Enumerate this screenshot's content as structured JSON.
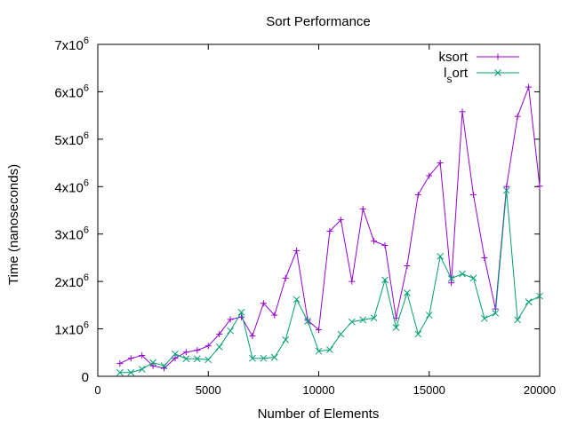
{
  "chart_data": {
    "type": "line",
    "title": "Sort Performance",
    "xlabel": "Number of Elements",
    "ylabel": "Time (nanoseconds)",
    "xlim": [
      0,
      20000
    ],
    "ylim": [
      0,
      7000000
    ],
    "x_ticks": [
      {
        "value": 0,
        "label": "0"
      },
      {
        "value": 5000,
        "label": "5000"
      },
      {
        "value": 10000,
        "label": "10000"
      },
      {
        "value": 15000,
        "label": "15000"
      },
      {
        "value": 20000,
        "label": "20000"
      }
    ],
    "y_ticks": [
      {
        "value": 0,
        "base": "0",
        "exp": ""
      },
      {
        "value": 1000000,
        "base": "1x10",
        "exp": "6"
      },
      {
        "value": 2000000,
        "base": "2x10",
        "exp": "6"
      },
      {
        "value": 3000000,
        "base": "3x10",
        "exp": "6"
      },
      {
        "value": 4000000,
        "base": "4x10",
        "exp": "6"
      },
      {
        "value": 5000000,
        "base": "5x10",
        "exp": "6"
      },
      {
        "value": 6000000,
        "base": "6x10",
        "exp": "6"
      },
      {
        "value": 7000000,
        "base": "7x10",
        "exp": "6"
      }
    ],
    "grid": false,
    "legend_position": "top-right",
    "series": [
      {
        "name": "ksort",
        "legend_parts": [
          "ksort",
          "",
          ""
        ],
        "color": "#9400d3",
        "marker": "plus",
        "points": [
          [
            1000,
            270000
          ],
          [
            1500,
            380000
          ],
          [
            2000,
            440000
          ],
          [
            2500,
            220000
          ],
          [
            3000,
            170000
          ],
          [
            3500,
            380000
          ],
          [
            4000,
            510000
          ],
          [
            4500,
            550000
          ],
          [
            5000,
            640000
          ],
          [
            5500,
            890000
          ],
          [
            6000,
            1200000
          ],
          [
            6500,
            1250000
          ],
          [
            7000,
            850000
          ],
          [
            7500,
            1540000
          ],
          [
            8000,
            1290000
          ],
          [
            8500,
            2070000
          ],
          [
            9000,
            2650000
          ],
          [
            9500,
            1180000
          ],
          [
            10000,
            980000
          ],
          [
            10500,
            3060000
          ],
          [
            11000,
            3300000
          ],
          [
            11500,
            2000000
          ],
          [
            12000,
            3530000
          ],
          [
            12500,
            2850000
          ],
          [
            13000,
            2760000
          ],
          [
            13500,
            1230000
          ],
          [
            14000,
            2330000
          ],
          [
            14500,
            3830000
          ],
          [
            15000,
            4230000
          ],
          [
            15500,
            4500000
          ],
          [
            16000,
            1970000
          ],
          [
            16500,
            5580000
          ],
          [
            17000,
            3830000
          ],
          [
            17500,
            2500000
          ],
          [
            18000,
            1420000
          ],
          [
            18500,
            4000000
          ],
          [
            19000,
            5480000
          ],
          [
            19500,
            6100000
          ],
          [
            20000,
            4010000
          ]
        ]
      },
      {
        "name": "lsort",
        "legend_parts": [
          "l",
          "s",
          "ort"
        ],
        "color": "#009e73",
        "marker": "cross",
        "points": [
          [
            1000,
            80000
          ],
          [
            1500,
            80000
          ],
          [
            2000,
            150000
          ],
          [
            2500,
            290000
          ],
          [
            3000,
            220000
          ],
          [
            3500,
            470000
          ],
          [
            4000,
            370000
          ],
          [
            4500,
            370000
          ],
          [
            5000,
            350000
          ],
          [
            5500,
            620000
          ],
          [
            6000,
            960000
          ],
          [
            6500,
            1350000
          ],
          [
            7000,
            380000
          ],
          [
            7500,
            380000
          ],
          [
            8000,
            400000
          ],
          [
            8500,
            770000
          ],
          [
            9000,
            1620000
          ],
          [
            9500,
            1160000
          ],
          [
            10000,
            530000
          ],
          [
            10500,
            560000
          ],
          [
            11000,
            890000
          ],
          [
            11500,
            1150000
          ],
          [
            12000,
            1190000
          ],
          [
            12500,
            1230000
          ],
          [
            13000,
            2030000
          ],
          [
            13500,
            1030000
          ],
          [
            14000,
            1760000
          ],
          [
            14500,
            890000
          ],
          [
            15000,
            1290000
          ],
          [
            15500,
            2530000
          ],
          [
            16000,
            2060000
          ],
          [
            16500,
            2160000
          ],
          [
            17000,
            2070000
          ],
          [
            17500,
            1220000
          ],
          [
            18000,
            1330000
          ],
          [
            18500,
            3920000
          ],
          [
            19000,
            1190000
          ],
          [
            19500,
            1570000
          ],
          [
            20000,
            1690000
          ]
        ]
      }
    ]
  }
}
